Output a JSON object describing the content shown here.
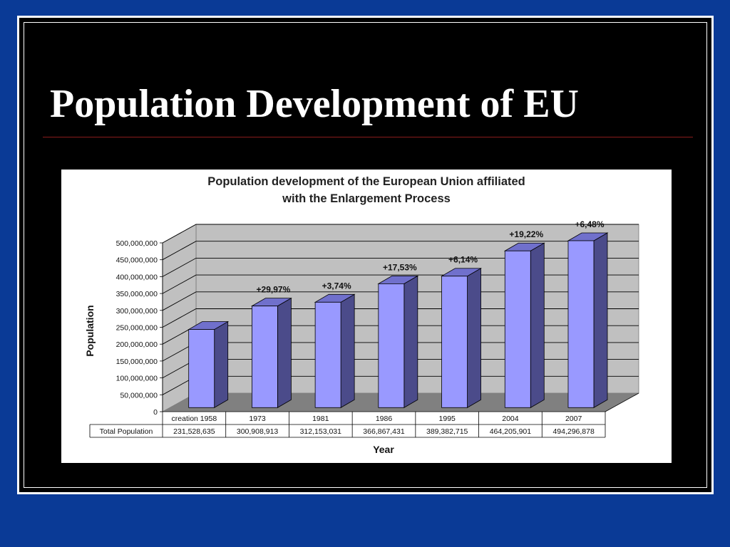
{
  "slide": {
    "title": "Population Development of EU",
    "background_color": "#0a3a96",
    "frame_color": "#000000"
  },
  "chart_data": {
    "type": "bar",
    "title_line1": "Population development of the European Union affiliated",
    "title_line2": "with the Enlargement Process",
    "xlabel": "Year",
    "ylabel": "Population",
    "ylim": [
      0,
      500000000
    ],
    "yticks": [
      0,
      50000000,
      100000000,
      150000000,
      200000000,
      250000000,
      300000000,
      350000000,
      400000000,
      450000000,
      500000000
    ],
    "ytick_labels": [
      "0",
      "50,000,000",
      "100,000,000",
      "150,000,000",
      "200,000,000",
      "250,000,000",
      "300,000,000",
      "350,000,000",
      "400,000,000",
      "450,000,000",
      "500,000,000"
    ],
    "grid": true,
    "three_d": true,
    "categories": [
      "creation 1958",
      "1973",
      "1981",
      "1986",
      "1995",
      "2004",
      "2007"
    ],
    "series": [
      {
        "name": "Total Population",
        "values": [
          231528635,
          300908913,
          312153031,
          366867431,
          389382715,
          464205901,
          494296878
        ],
        "value_labels": [
          "231,528,635",
          "300,908,913",
          "312,153,031",
          "366,867,431",
          "389,382,715",
          "464,205,901",
          "494,296,878"
        ]
      }
    ],
    "growth_annotations": [
      "",
      "+29,97%",
      "+3,74%",
      "+17,53%",
      "+6,14%",
      "+19,22%",
      "+6,48%"
    ],
    "colors": {
      "bar_front": "#9999ff",
      "bar_side": "#4b4b8a",
      "bar_top": "#7070cc",
      "wall": "#c0c0c0",
      "floor": "#808080"
    }
  }
}
